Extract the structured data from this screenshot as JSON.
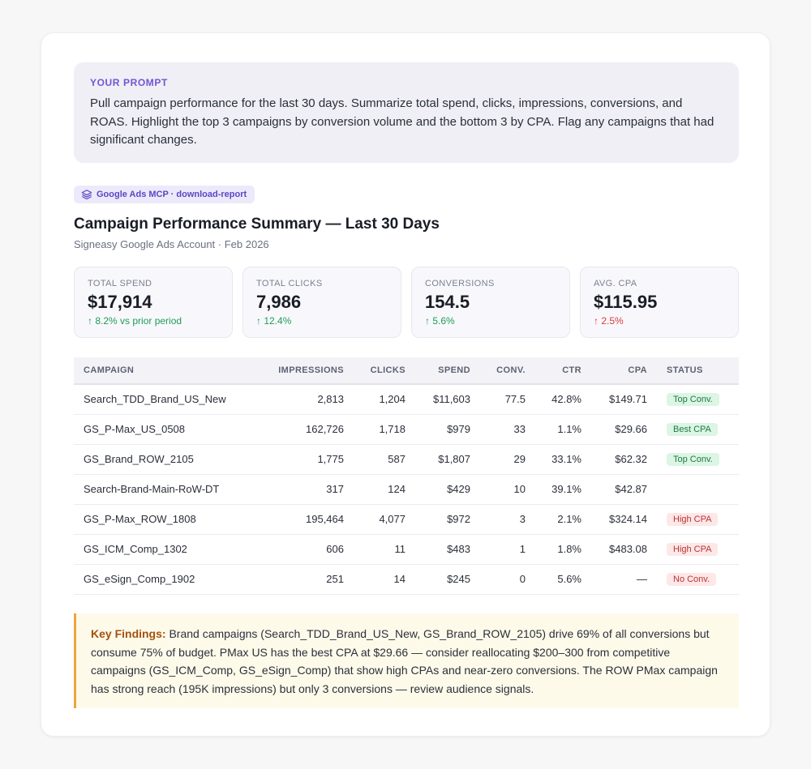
{
  "prompt": {
    "label": "YOUR PROMPT",
    "text": "Pull campaign performance for the last 30 days. Summarize total spend, clicks, impressions, conversions, and ROAS. Highlight the top 3 campaigns by conversion volume and the bottom 3 by CPA. Flag any campaigns that had significant changes."
  },
  "tool": {
    "icon": "layers-icon",
    "label": "Google Ads MCP · download-report"
  },
  "report": {
    "title": "Campaign Performance Summary — Last 30 Days",
    "subtitle": "Signeasy Google Ads Account · Feb 2026"
  },
  "kpis": [
    {
      "label": "TOTAL SPEND",
      "value": "$17,914",
      "delta": "↑ 8.2% vs prior period",
      "tone": "good"
    },
    {
      "label": "TOTAL CLICKS",
      "value": "7,986",
      "delta": "↑ 12.4%",
      "tone": "good"
    },
    {
      "label": "CONVERSIONS",
      "value": "154.5",
      "delta": "↑ 5.6%",
      "tone": "good"
    },
    {
      "label": "AVG. CPA",
      "value": "$115.95",
      "delta": "↑ 2.5%",
      "tone": "bad"
    }
  ],
  "table": {
    "headers": {
      "campaign": "CAMPAIGN",
      "impressions": "IMPRESSIONS",
      "clicks": "CLICKS",
      "spend": "SPEND",
      "conv": "CONV.",
      "ctr": "CTR",
      "cpa": "CPA",
      "status": "STATUS"
    },
    "rows": [
      {
        "campaign": "Search_TDD_Brand_US_New",
        "impressions": "2,813",
        "clicks": "1,204",
        "spend": "$11,603",
        "conv": "77.5",
        "ctr": "42.8%",
        "cpa": "$149.71",
        "status": "Top Conv.",
        "status_tone": "green"
      },
      {
        "campaign": "GS_P-Max_US_0508",
        "impressions": "162,726",
        "clicks": "1,718",
        "spend": "$979",
        "conv": "33",
        "ctr": "1.1%",
        "cpa": "$29.66",
        "status": "Best CPA",
        "status_tone": "green"
      },
      {
        "campaign": "GS_Brand_ROW_2105",
        "impressions": "1,775",
        "clicks": "587",
        "spend": "$1,807",
        "conv": "29",
        "ctr": "33.1%",
        "cpa": "$62.32",
        "status": "Top Conv.",
        "status_tone": "green"
      },
      {
        "campaign": "Search-Brand-Main-RoW-DT",
        "impressions": "317",
        "clicks": "124",
        "spend": "$429",
        "conv": "10",
        "ctr": "39.1%",
        "cpa": "$42.87",
        "status": "",
        "status_tone": ""
      },
      {
        "campaign": "GS_P-Max_ROW_1808",
        "impressions": "195,464",
        "clicks": "4,077",
        "spend": "$972",
        "conv": "3",
        "ctr": "2.1%",
        "cpa": "$324.14",
        "status": "High CPA",
        "status_tone": "red"
      },
      {
        "campaign": "GS_ICM_Comp_1302",
        "impressions": "606",
        "clicks": "11",
        "spend": "$483",
        "conv": "1",
        "ctr": "1.8%",
        "cpa": "$483.08",
        "status": "High CPA",
        "status_tone": "red"
      },
      {
        "campaign": "GS_eSign_Comp_1902",
        "impressions": "251",
        "clicks": "14",
        "spend": "$245",
        "conv": "0",
        "ctr": "5.6%",
        "cpa": "—",
        "status": "No Conv.",
        "status_tone": "red"
      }
    ]
  },
  "findings": {
    "label": "Key Findings:",
    "text": " Brand campaigns (Search_TDD_Brand_US_New, GS_Brand_ROW_2105) drive 69% of all conversions but consume 75% of budget. PMax US has the best CPA at $29.66 — consider reallocating $200–300 from competitive campaigns (GS_ICM_Comp, GS_eSign_Comp) that show high CPAs and near-zero conversions. The ROW PMax campaign has strong reach (195K impressions) but only 3 conversions — review audience signals."
  },
  "colors": {
    "accent": "#7155d4",
    "positive": "#1f9d55",
    "negative": "#d93a3a",
    "findings_border": "#f0a43a"
  }
}
